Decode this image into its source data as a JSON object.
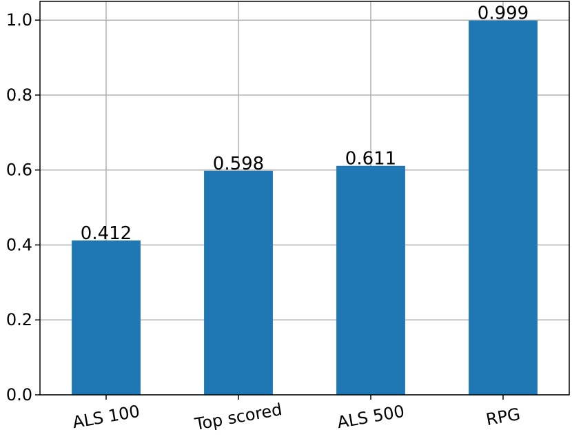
{
  "chart_data": {
    "type": "bar",
    "categories": [
      "ALS 100",
      "Top scored",
      "ALS 500",
      "RPG"
    ],
    "values": [
      0.412,
      0.598,
      0.611,
      0.999
    ],
    "value_labels": [
      "0.412",
      "0.598",
      "0.611",
      "0.999"
    ],
    "y_ticks": [
      "0.0",
      "0.2",
      "0.4",
      "0.6",
      "0.8",
      "1.0"
    ],
    "ylim": [
      0,
      1.05
    ],
    "grid": true,
    "bar_color": "#1f77b4",
    "title": "",
    "xlabel": "",
    "ylabel": ""
  }
}
